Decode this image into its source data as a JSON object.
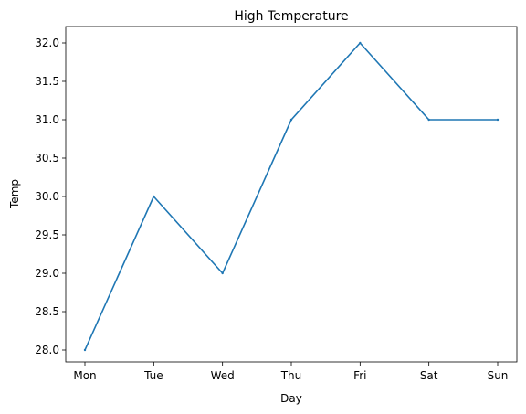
{
  "chart_data": {
    "type": "line",
    "title": "High Temperature",
    "xlabel": "Day",
    "ylabel": "Temp",
    "categories": [
      "Mon",
      "Tue",
      "Wed",
      "Thu",
      "Fri",
      "Sat",
      "Sun"
    ],
    "series": [
      {
        "values": [
          28,
          30,
          29,
          31,
          32,
          31,
          31
        ],
        "color": "#1f77b4"
      }
    ],
    "yticks": [
      "28.0",
      "28.5",
      "29.0",
      "29.5",
      "30.0",
      "30.5",
      "31.0",
      "31.5",
      "32.0"
    ],
    "ylim": [
      27.8,
      32.2
    ],
    "grid": false,
    "legend": "none"
  }
}
